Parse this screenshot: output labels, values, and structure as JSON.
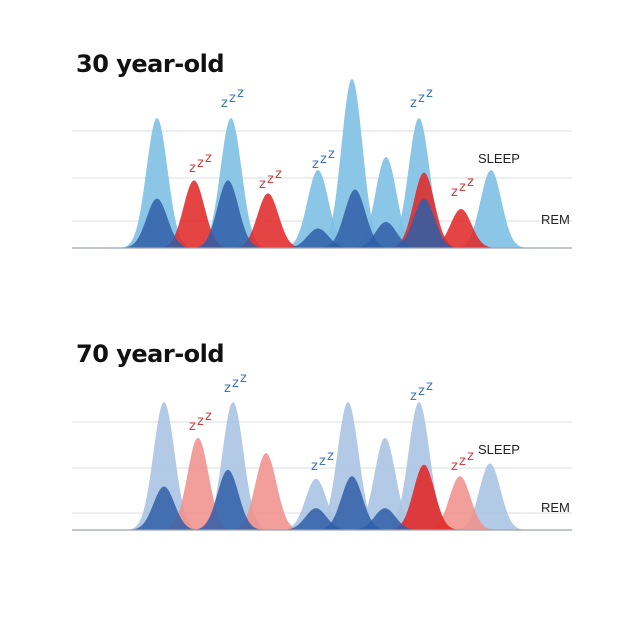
{
  "chart_data": [
    {
      "type": "area",
      "title": "30 year-old",
      "series": [
        {
          "name": "SLEEP",
          "color": "#7fc0e4",
          "opacity": 0.9,
          "peaks": [
            {
              "x": 157,
              "h": 1.0
            },
            {
              "x": 231,
              "h": 1.0
            },
            {
              "x": 318,
              "h": 0.6
            },
            {
              "x": 352,
              "h": 1.3
            },
            {
              "x": 386,
              "h": 0.7
            },
            {
              "x": 419,
              "h": 1.0
            },
            {
              "x": 491,
              "h": 0.6
            }
          ]
        },
        {
          "name": "",
          "color": "#e02a2a",
          "opacity": 0.88,
          "peaks": [
            {
              "x": 194,
              "h": 0.52
            },
            {
              "x": 268,
              "h": 0.42
            },
            {
              "x": 424,
              "h": 0.58
            },
            {
              "x": 461,
              "h": 0.3
            }
          ]
        },
        {
          "name": "REM",
          "color": "#2f5ea7",
          "opacity": 0.85,
          "peaks": [
            {
              "x": 157,
              "h": 0.38
            },
            {
              "x": 228,
              "h": 0.52
            },
            {
              "x": 318,
              "h": 0.15
            },
            {
              "x": 355,
              "h": 0.45
            },
            {
              "x": 386,
              "h": 0.2
            },
            {
              "x": 424,
              "h": 0.38
            }
          ]
        }
      ],
      "zzz_color_sleep": "#3d79b6",
      "zzz_color_rem": "#cf3f3f"
    },
    {
      "type": "area",
      "title": "70 year-old",
      "series": [
        {
          "name": "SLEEP",
          "color": "#aac4e2",
          "opacity": 0.9,
          "peaks": [
            {
              "x": 164,
              "h": 1.0
            },
            {
              "x": 233,
              "h": 1.0
            },
            {
              "x": 316,
              "h": 0.4
            },
            {
              "x": 348,
              "h": 1.0
            },
            {
              "x": 385,
              "h": 0.72
            },
            {
              "x": 419,
              "h": 1.0
            },
            {
              "x": 490,
              "h": 0.52
            }
          ]
        },
        {
          "name": "",
          "color": "#f0918c",
          "opacity": 0.88,
          "peaks": [
            {
              "x": 198,
              "h": 0.72
            },
            {
              "x": 266,
              "h": 0.6
            },
            {
              "x": 460,
              "h": 0.42
            }
          ]
        },
        {
          "name": "",
          "color": "#e02a2a",
          "opacity": 0.9,
          "peaks": [
            {
              "x": 424,
              "h": 0.51
            }
          ]
        },
        {
          "name": "REM",
          "color": "#2f5ea7",
          "opacity": 0.85,
          "peaks": [
            {
              "x": 164,
              "h": 0.34
            },
            {
              "x": 228,
              "h": 0.47
            },
            {
              "x": 316,
              "h": 0.17
            },
            {
              "x": 352,
              "h": 0.42
            },
            {
              "x": 385,
              "h": 0.17
            }
          ]
        }
      ],
      "zzz_color_sleep": "#3d79b6",
      "zzz_color_rem": "#cf3f3f"
    }
  ]
}
